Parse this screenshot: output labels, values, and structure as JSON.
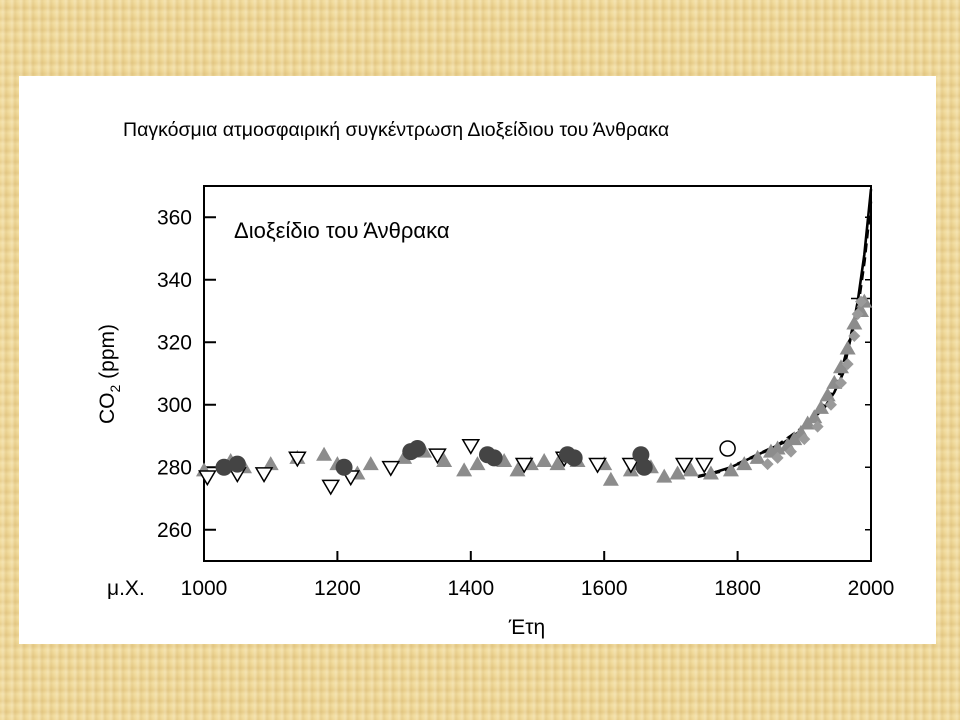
{
  "chart_data": {
    "type": "scatter",
    "title": "Παγκόσμια ατμοσφαιρική συγκέντρωση Διοξείδιου του Άνθρακα",
    "panel_label": "Διοξείδιο του Άνθρακα",
    "xlabel": "Έτη",
    "ylabel_main": "CO",
    "ylabel_sub": "2",
    "ylabel_unit": " (ppm)",
    "x_prefix": "μ.Χ.",
    "xlim": [
      1000,
      2000
    ],
    "ylim": [
      250,
      370
    ],
    "x_ticks": [
      1000,
      1200,
      1400,
      1600,
      1800,
      2000
    ],
    "y_ticks": [
      260,
      280,
      300,
      320,
      340,
      360
    ],
    "grid": false,
    "series": [
      {
        "marker": "grey-triangle",
        "color": "#8c8c8c",
        "points": [
          [
            1000,
            279
          ],
          [
            1040,
            282
          ],
          [
            1060,
            280
          ],
          [
            1100,
            281
          ],
          [
            1140,
            283
          ],
          [
            1180,
            284
          ],
          [
            1200,
            281
          ],
          [
            1230,
            278
          ],
          [
            1250,
            281
          ],
          [
            1300,
            283
          ],
          [
            1330,
            285
          ],
          [
            1360,
            282
          ],
          [
            1390,
            279
          ],
          [
            1410,
            281
          ],
          [
            1450,
            282
          ],
          [
            1470,
            279
          ],
          [
            1490,
            281
          ],
          [
            1510,
            282
          ],
          [
            1530,
            281
          ],
          [
            1560,
            282
          ],
          [
            1600,
            281
          ],
          [
            1610,
            276
          ],
          [
            1640,
            279
          ],
          [
            1650,
            281
          ],
          [
            1670,
            280
          ],
          [
            1690,
            277
          ],
          [
            1710,
            278
          ],
          [
            1730,
            279
          ],
          [
            1760,
            278
          ],
          [
            1790,
            279
          ],
          [
            1810,
            281
          ],
          [
            1830,
            283
          ],
          [
            1850,
            285
          ],
          [
            1860,
            286
          ],
          [
            1875,
            287
          ],
          [
            1885,
            289
          ],
          [
            1895,
            291
          ],
          [
            1905,
            294
          ],
          [
            1915,
            296
          ],
          [
            1925,
            299
          ],
          [
            1935,
            303
          ],
          [
            1945,
            307
          ],
          [
            1955,
            312
          ],
          [
            1965,
            318
          ],
          [
            1975,
            326
          ],
          [
            1985,
            330
          ],
          [
            1990,
            333
          ]
        ]
      },
      {
        "marker": "open-triangle-down",
        "color": "#000000",
        "points": [
          [
            1005,
            277
          ],
          [
            1050,
            278
          ],
          [
            1090,
            278
          ],
          [
            1140,
            283
          ],
          [
            1190,
            274
          ],
          [
            1220,
            277
          ],
          [
            1280,
            280
          ],
          [
            1350,
            284
          ],
          [
            1400,
            287
          ],
          [
            1480,
            281
          ],
          [
            1540,
            283
          ],
          [
            1590,
            281
          ],
          [
            1640,
            281
          ],
          [
            1720,
            281
          ],
          [
            1750,
            281
          ]
        ]
      },
      {
        "marker": "dark-circle",
        "color": "#444444",
        "points": [
          [
            1030,
            280
          ],
          [
            1050,
            281
          ],
          [
            1210,
            280
          ],
          [
            1310,
            285
          ],
          [
            1320,
            286
          ],
          [
            1425,
            284
          ],
          [
            1435,
            283
          ],
          [
            1545,
            284
          ],
          [
            1555,
            283
          ],
          [
            1655,
            284
          ],
          [
            1660,
            280
          ]
        ]
      },
      {
        "marker": "open-circle",
        "color": "#000000",
        "points": [
          [
            1785,
            286
          ]
        ]
      },
      {
        "marker": "grey-diamond",
        "color": "#9a9a9a",
        "points": [
          [
            1845,
            281
          ],
          [
            1860,
            283
          ],
          [
            1880,
            285
          ],
          [
            1900,
            289
          ],
          [
            1920,
            293
          ],
          [
            1940,
            300
          ],
          [
            1955,
            307
          ],
          [
            1965,
            313
          ],
          [
            1975,
            322
          ],
          [
            1980,
            329
          ],
          [
            1985,
            333
          ]
        ]
      }
    ],
    "line_series": [
      {
        "name": "",
        "style": "dashed",
        "color": "#000000",
        "points": [
          [
            1740,
            277
          ],
          [
            1780,
            279
          ],
          [
            1800,
            281
          ],
          [
            1820,
            283
          ],
          [
            1840,
            285
          ],
          [
            1860,
            287
          ],
          [
            1880,
            290
          ],
          [
            1900,
            293
          ],
          [
            1920,
            297
          ],
          [
            1940,
            303
          ],
          [
            1950,
            308
          ],
          [
            1960,
            314
          ],
          [
            1970,
            322
          ],
          [
            1980,
            331
          ],
          [
            1990,
            346
          ],
          [
            2000,
            366
          ]
        ]
      },
      {
        "name": "",
        "style": "solid",
        "color": "#000000",
        "points": [
          [
            1760,
            278
          ],
          [
            1790,
            280
          ],
          [
            1810,
            282
          ],
          [
            1830,
            284
          ],
          [
            1850,
            286
          ],
          [
            1870,
            288
          ],
          [
            1890,
            291
          ],
          [
            1910,
            295
          ],
          [
            1930,
            299
          ],
          [
            1945,
            304
          ],
          [
            1958,
            310
          ],
          [
            1965,
            317
          ],
          [
            1972,
            324
          ],
          [
            1980,
            333
          ],
          [
            1990,
            348
          ],
          [
            2000,
            369
          ]
        ]
      }
    ],
    "reference_line": {
      "from_x": 1970,
      "to_x": 2000,
      "y": 334
    }
  }
}
